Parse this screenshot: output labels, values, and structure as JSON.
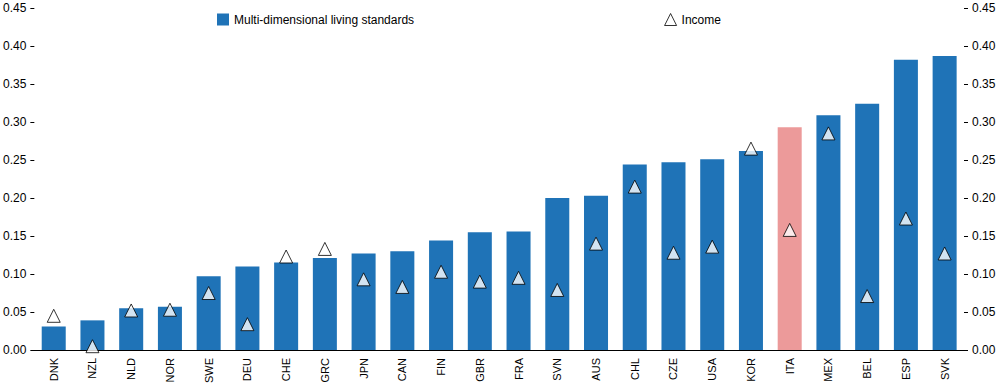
{
  "chart_data": {
    "type": "bar",
    "categories": [
      "DNK",
      "NZL",
      "NLD",
      "NOR",
      "SWE",
      "DEU",
      "CHE",
      "GRC",
      "JPN",
      "CAN",
      "FIN",
      "GBR",
      "FRA",
      "SVN",
      "AUS",
      "CHL",
      "CZE",
      "USA",
      "KOR",
      "ITA",
      "MEX",
      "BEL",
      "ESP",
      "SVK"
    ],
    "series": [
      {
        "name": "Multi-dimensional living standards",
        "type": "bar",
        "values": [
          0.031,
          0.039,
          0.055,
          0.057,
          0.097,
          0.11,
          0.115,
          0.121,
          0.127,
          0.13,
          0.144,
          0.155,
          0.156,
          0.2,
          0.203,
          0.244,
          0.247,
          0.251,
          0.262,
          0.293,
          0.309,
          0.324,
          0.382,
          0.387
        ],
        "colors": [
          "#1f73b7",
          "#1f73b7",
          "#1f73b7",
          "#1f73b7",
          "#1f73b7",
          "#1f73b7",
          "#1f73b7",
          "#1f73b7",
          "#1f73b7",
          "#1f73b7",
          "#1f73b7",
          "#1f73b7",
          "#1f73b7",
          "#1f73b7",
          "#1f73b7",
          "#1f73b7",
          "#1f73b7",
          "#1f73b7",
          "#1f73b7",
          "#ec9a9a",
          "#1f73b7",
          "#1f73b7",
          "#1f73b7",
          "#1f73b7"
        ]
      },
      {
        "name": "Income",
        "type": "scatter",
        "marker": "triangle",
        "color": "#ffffff",
        "values": [
          0.045,
          0.005,
          0.052,
          0.053,
          0.075,
          0.034,
          0.123,
          0.133,
          0.093,
          0.083,
          0.103,
          0.09,
          0.095,
          0.079,
          0.14,
          0.215,
          0.128,
          0.136,
          0.265,
          0.158,
          0.285,
          0.071,
          0.173,
          0.127
        ]
      }
    ],
    "ylim": [
      0,
      0.45
    ],
    "yticks": [
      {
        "value": 0,
        "label": "0.00"
      },
      {
        "value": 0.05,
        "label": "0.05"
      },
      {
        "value": 0.1,
        "label": "0.10"
      },
      {
        "value": 0.15,
        "label": "0.15"
      },
      {
        "value": 0.2,
        "label": "0.20"
      },
      {
        "value": 0.25,
        "label": "0.25"
      },
      {
        "value": 0.3,
        "label": "0.30"
      },
      {
        "value": 0.35,
        "label": "0.35"
      },
      {
        "value": 0.4,
        "label": "0.40"
      },
      {
        "value": 0.45,
        "label": "0.45"
      }
    ],
    "y2lim": [
      0,
      0.45
    ],
    "y2ticks": [
      {
        "value": 0,
        "label": "0.00"
      },
      {
        "value": 0.05,
        "label": "0.05"
      },
      {
        "value": 0.1,
        "label": "0.10"
      },
      {
        "value": 0.15,
        "label": "0.15"
      },
      {
        "value": 0.2,
        "label": "0.20"
      },
      {
        "value": 0.25,
        "label": "0.25"
      },
      {
        "value": 0.3,
        "label": "0.30"
      },
      {
        "value": 0.35,
        "label": "0.35"
      },
      {
        "value": 0.4,
        "label": "0.40"
      },
      {
        "value": 0.45,
        "label": "0.45"
      }
    ],
    "grid": false,
    "legend": "top"
  }
}
